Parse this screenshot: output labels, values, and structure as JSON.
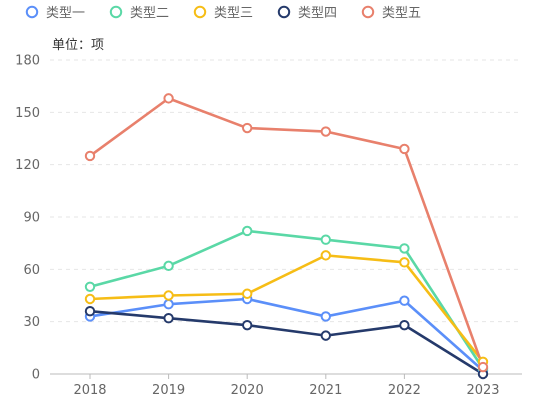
{
  "chart_data": {
    "type": "line",
    "unit_label": "单位：项",
    "categories": [
      "2018",
      "2019",
      "2020",
      "2021",
      "2022",
      "2023"
    ],
    "y_ticks": [
      "0",
      "30",
      "60",
      "90",
      "120",
      "150",
      "180"
    ],
    "ylim": [
      0,
      180
    ],
    "grid": true,
    "legend_position": "top-left",
    "series": [
      {
        "name": "类型一",
        "color": "#5b8ff9",
        "values": [
          33,
          40,
          43,
          33,
          42,
          2
        ]
      },
      {
        "name": "类型二",
        "color": "#5ad8a6",
        "values": [
          50,
          62,
          82,
          77,
          72,
          3
        ]
      },
      {
        "name": "类型三",
        "color": "#f6bd16",
        "values": [
          43,
          45,
          46,
          68,
          64,
          7
        ]
      },
      {
        "name": "类型四",
        "color": "#253a6b",
        "values": [
          36,
          32,
          28,
          22,
          28,
          0
        ]
      },
      {
        "name": "类型五",
        "color": "#e8806c",
        "values": [
          125,
          158,
          141,
          139,
          129,
          4
        ]
      }
    ]
  }
}
